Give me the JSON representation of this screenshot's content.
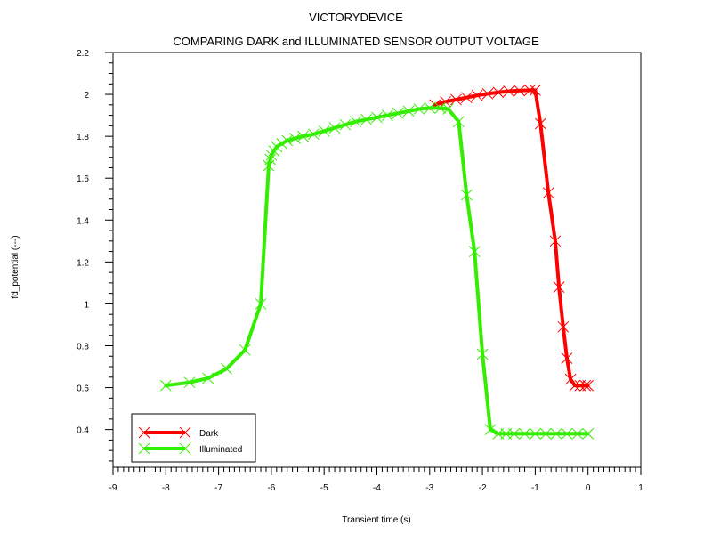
{
  "chart_data": {
    "type": "line",
    "title": "VICTORYDEVICE",
    "subtitle": "COMPARING  DARK  and  ILLUMINATED SENSOR OUTPUT VOLTAGE",
    "xlabel": "Transient time (s)",
    "ylabel": "fd_potential (---)",
    "xlim": [
      -9,
      1
    ],
    "ylim": [
      0.22,
      2.2
    ],
    "xticks": [
      -9,
      -8,
      -7,
      -6,
      -5,
      -4,
      -3,
      -2,
      -1,
      0,
      1
    ],
    "yticks": [
      0.4,
      0.6,
      0.8,
      1,
      1.2,
      1.4,
      1.6,
      1.8,
      2,
      2.2
    ],
    "grid": false,
    "legend_position": "bottom-left",
    "series": [
      {
        "name": "Dark",
        "color": "#ff0000",
        "x": [
          -2.9,
          -2.7,
          -2.5,
          -2.3,
          -2.1,
          -1.9,
          -1.7,
          -1.5,
          -1.3,
          -1.1,
          -1.0,
          -0.9,
          -0.75,
          -0.62,
          -0.55,
          -0.47,
          -0.4,
          -0.33,
          -0.25,
          -0.15,
          -0.05,
          0.0
        ],
        "values": [
          1.95,
          1.965,
          1.975,
          1.985,
          1.995,
          2.003,
          2.01,
          2.015,
          2.018,
          2.02,
          2.02,
          1.86,
          1.53,
          1.3,
          1.08,
          0.89,
          0.74,
          0.64,
          0.61,
          0.61,
          0.61,
          0.61
        ]
      },
      {
        "name": "Illuminated",
        "color": "#33ee00",
        "x": [
          -8.0,
          -7.55,
          -7.2,
          -6.85,
          -6.5,
          -6.2,
          -6.05,
          -6.02,
          -6.0,
          -5.95,
          -5.9,
          -5.8,
          -5.7,
          -5.55,
          -5.4,
          -5.2,
          -5.0,
          -4.8,
          -4.6,
          -4.4,
          -4.2,
          -4.0,
          -3.8,
          -3.6,
          -3.4,
          -3.2,
          -3.0,
          -2.8,
          -2.65,
          -2.45,
          -2.3,
          -2.15,
          -2.0,
          -1.85,
          -1.7,
          -1.55,
          -1.4,
          -1.2,
          -1.0,
          -0.8,
          -0.6,
          -0.4,
          -0.2,
          0.0
        ],
        "values": [
          0.61,
          0.625,
          0.645,
          0.69,
          0.78,
          1.0,
          1.66,
          1.69,
          1.71,
          1.73,
          1.75,
          1.765,
          1.78,
          1.79,
          1.8,
          1.81,
          1.825,
          1.84,
          1.855,
          1.87,
          1.88,
          1.89,
          1.9,
          1.91,
          1.92,
          1.93,
          1.935,
          1.935,
          1.93,
          1.87,
          1.52,
          1.25,
          0.76,
          0.4,
          0.38,
          0.38,
          0.38,
          0.38,
          0.38,
          0.38,
          0.38,
          0.38,
          0.38,
          0.38
        ]
      }
    ]
  }
}
